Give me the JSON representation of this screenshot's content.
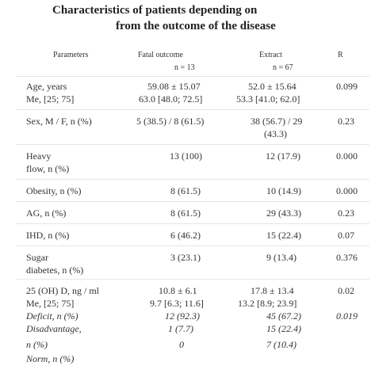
{
  "title": {
    "line1": "Characteristics of patients depending on",
    "line2": "from the outcome of the disease"
  },
  "header": {
    "parameters": "Parameters",
    "fatal": "Fatal outcome",
    "fatal_n": "n = 13",
    "extract": "Extract",
    "extract_n": "n = 67",
    "r": "R"
  },
  "rows": {
    "age": {
      "label": "Age, years",
      "label2": "Me, [25; 75]",
      "fatal": "59.08 ± 15.07",
      "fatal2": "63.0 [48.0; 72.5]",
      "extract": "52.0 ± 15.64",
      "extract2": "53.3 [41.0; 62.0]",
      "r": "0.099"
    },
    "sex": {
      "label": "Sex, M / F, n (%)",
      "fatal": "5 (38.5) / 8 (61.5)",
      "extract": "38 (56.7) / 29",
      "extract2": "(43.3)",
      "r": "0.23"
    },
    "heavy": {
      "label": "Heavy",
      "label2": "flow, n (%)",
      "fatal": "13 (100)",
      "extract": "12 (17.9)",
      "r": "0.000"
    },
    "obesity": {
      "label": "Obesity, n (%)",
      "fatal": "8 (61.5)",
      "extract": "10 (14.9)",
      "r": "0.000"
    },
    "ag": {
      "label": "AG, n (%)",
      "fatal": "8 (61.5)",
      "extract": "29 (43.3)",
      "r": "0.23"
    },
    "ihd": {
      "label": "IHD, n (%)",
      "fatal": "6 (46.2)",
      "extract": "15 (22.4)",
      "r": "0.07"
    },
    "sugar": {
      "label": "Sugar",
      "label2": "diabetes, n (%)",
      "fatal": "3 (23.1)",
      "extract": "9 (13.4)",
      "r": "0.376"
    },
    "vitd": {
      "label": "25 (OH) D, ng / ml",
      "label2": "Me, [25; 75]",
      "fatal": "10.8 ± 6.1",
      "fatal2": "9.7 [6.3; 11.6]",
      "extract": "17.8 ± 13.4",
      "extract2": "13.2 [8.9; 23.9]",
      "r": "0.02"
    },
    "deficit": {
      "label": "Deficit, n (%)",
      "fatal": "12 (92.3)",
      "extract": "45 (67.2)",
      "r": "0.019"
    },
    "disadvantage": {
      "label": "Disadvantage,",
      "label2": "n (%)",
      "fatal": "1 (7.7)",
      "extract": "15 (22.4)"
    },
    "norm": {
      "label": "Norm, n (%)",
      "fatal": "0",
      "extract": "7 (10.4)"
    }
  }
}
